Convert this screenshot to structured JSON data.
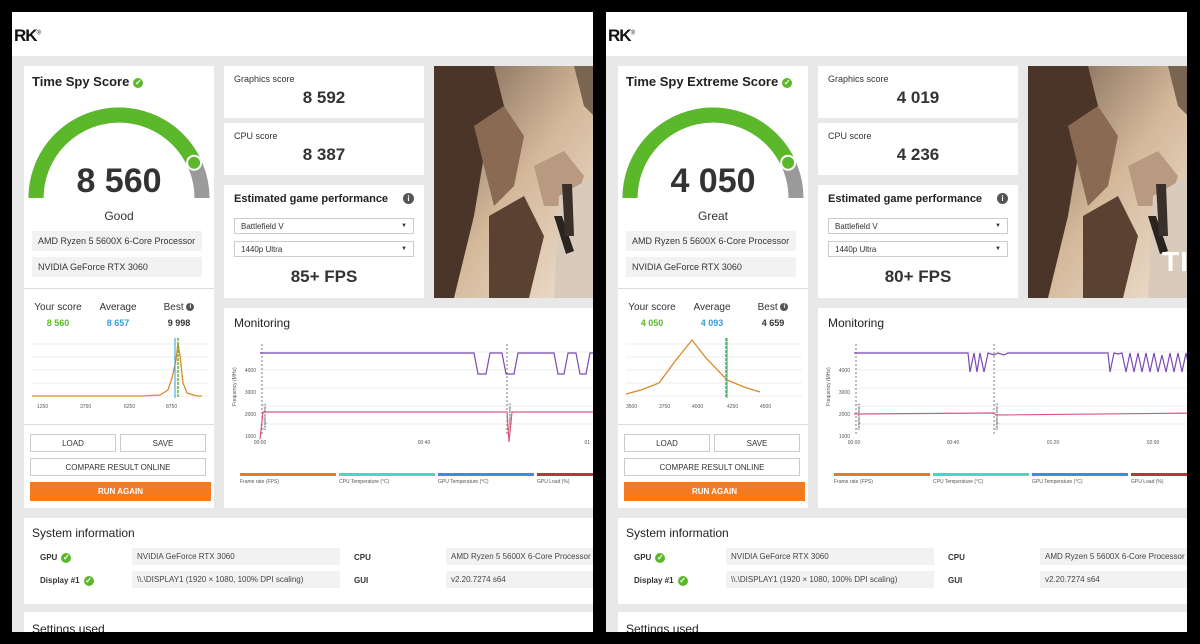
{
  "panels": [
    {
      "logo": "RK",
      "score_title": "Time Spy Score",
      "score": "8 560",
      "rating": "Good",
      "gauge_fraction": 0.86,
      "cpu_name": "AMD Ryzen 5 5600X 6-Core Processor",
      "gpu_name": "NVIDIA GeForce RTX 3060",
      "your_score_label": "Your score",
      "your_score": "8 560",
      "average_label": "Average",
      "average": "8 657",
      "best_label": "Best",
      "best": "9 998",
      "dist_axis": [
        "1250",
        "3750",
        "6250",
        "8750"
      ],
      "graphics_label": "Graphics score",
      "graphics_score": "8 592",
      "cpu_label": "CPU score",
      "cpu_score": "8 387",
      "game_perf_title": "Estimated game performance",
      "game": "Battlefield V",
      "resolution": "1440p Ultra",
      "fps": "85+ FPS",
      "monitoring_title": "Monitoring",
      "y_axis_label": "Frequency (MHz)",
      "y_ticks": [
        "4000",
        "3000",
        "2000",
        "1000"
      ],
      "x_ticks": [
        "00:00",
        "00:40",
        "01:"
      ],
      "marker1": "Graphics test 1",
      "marker2": "Graphics test 2",
      "legend": [
        "Frame rate (FPS)",
        "CPU Temperature (°C)",
        "GPU Temperature (°C)",
        "GPU Load (%)"
      ],
      "buttons": {
        "load": "LOAD",
        "save": "SAVE",
        "compare": "COMPARE RESULT ONLINE",
        "run": "RUN AGAIN"
      },
      "sys_title": "System information",
      "sys_gpu_label": "GPU",
      "sys_gpu": "NVIDIA GeForce RTX 3060",
      "sys_display_label": "Display #1",
      "sys_display": "\\\\.\\DISPLAY1 (1920 × 1080, 100% DPI scaling)",
      "sys_cpu_label": "CPU",
      "sys_cpu": "AMD Ryzen 5 5600X 6-Core Processor",
      "sys_gui_label": "GUI",
      "sys_gui": "v2.20.7274 s64",
      "settings_title": "Settings used",
      "art_text": ""
    },
    {
      "logo": "RK",
      "score_title": "Time Spy Extreme Score",
      "score": "4 050",
      "rating": "Great",
      "gauge_fraction": 0.86,
      "cpu_name": "AMD Ryzen 5 5600X 6-Core Processor",
      "gpu_name": "NVIDIA GeForce RTX 3060",
      "your_score_label": "Your score",
      "your_score": "4 050",
      "average_label": "Average",
      "average": "4 093",
      "best_label": "Best",
      "best": "4 659",
      "dist_axis": [
        "3500",
        "3750",
        "4000",
        "4250",
        "4500"
      ],
      "graphics_label": "Graphics score",
      "graphics_score": "4 019",
      "cpu_label": "CPU score",
      "cpu_score": "4 236",
      "game_perf_title": "Estimated game performance",
      "game": "Battlefield V",
      "resolution": "1440p Ultra",
      "fps": "80+ FPS",
      "monitoring_title": "Monitoring",
      "y_axis_label": "Frequency (MHz)",
      "y_ticks": [
        "4000",
        "3000",
        "2000",
        "1000"
      ],
      "x_ticks": [
        "00:00",
        "00:40",
        "01:20",
        "02:00"
      ],
      "marker1": "Graphics test 1",
      "marker2": "Graphics test 2",
      "legend": [
        "Frame rate (FPS)",
        "CPU Temperature (°C)",
        "GPU Temperature (°C)",
        "GPU Load (%)"
      ],
      "buttons": {
        "load": "LOAD",
        "save": "SAVE",
        "compare": "COMPARE RESULT ONLINE",
        "run": "RUN AGAIN"
      },
      "sys_title": "System information",
      "sys_gpu_label": "GPU",
      "sys_gpu": "NVIDIA GeForce RTX 3060",
      "sys_display_label": "Display #1",
      "sys_display": "\\\\.\\DISPLAY1 (1920 × 1080, 100% DPI scaling)",
      "sys_cpu_label": "CPU",
      "sys_cpu": "AMD Ryzen 5 5600X 6-Core Processor",
      "sys_gui_label": "GUI",
      "sys_gui": "v2.20.7274 s64",
      "settings_title": "Settings used",
      "art_text": "TI"
    }
  ],
  "colors": {
    "accent_orange": "#f47a20",
    "gauge_green": "#5cb82b",
    "average_blue": "#3a9ad9",
    "cpu_freq_purple": "#7b4bb5",
    "gpu_freq_pink": "#d65a7a"
  }
}
